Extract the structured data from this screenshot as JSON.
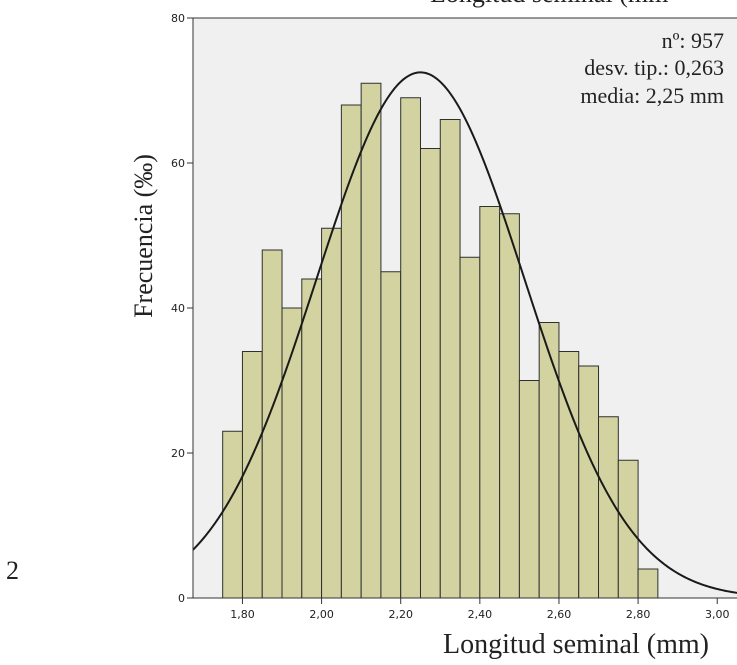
{
  "page_number": "2",
  "chart_data": {
    "type": "bar",
    "title": "Longitud seminal (mm",
    "xlabel": "Longitud seminal (mm)",
    "ylabel": "Frecuencia (‰)",
    "annotations": [
      "nº: 957",
      "desv. tip.: 0,263",
      "media: 2,25 mm"
    ],
    "bin_width": 0.05,
    "bin_starts": [
      1.75,
      1.8,
      1.85,
      1.9,
      1.95,
      2.0,
      2.05,
      2.1,
      2.15,
      2.2,
      2.25,
      2.3,
      2.35,
      2.4,
      2.45,
      2.5,
      2.55,
      2.6,
      2.65,
      2.7,
      2.75,
      2.8
    ],
    "values": [
      23,
      34,
      48,
      40,
      44,
      51,
      68,
      71,
      45,
      69,
      62,
      66,
      47,
      54,
      53,
      30,
      38,
      34,
      32,
      25,
      19,
      4
    ],
    "normal_curve": {
      "mean": 2.25,
      "sd": 0.263,
      "peak": 72.5
    },
    "xlim": [
      1.675,
      3.05
    ],
    "ylim": [
      0,
      80
    ],
    "xticks": [
      "1,80",
      "2,00",
      "2,20",
      "2,40",
      "2,60",
      "2,80",
      "3,00"
    ],
    "xtick_values": [
      1.8,
      2.0,
      2.2,
      2.4,
      2.6,
      2.8,
      3.0
    ],
    "yticks": [
      "0",
      "20",
      "40",
      "60",
      "80"
    ],
    "ytick_values": [
      0,
      20,
      40,
      60,
      80
    ],
    "colors": {
      "bar_fill": "#d3d3a2",
      "bar_stroke": "#2f2f2f",
      "plot_bg": "#f0f0f0",
      "curve": "#1a1a1a"
    },
    "grid": false,
    "legend": "none"
  }
}
